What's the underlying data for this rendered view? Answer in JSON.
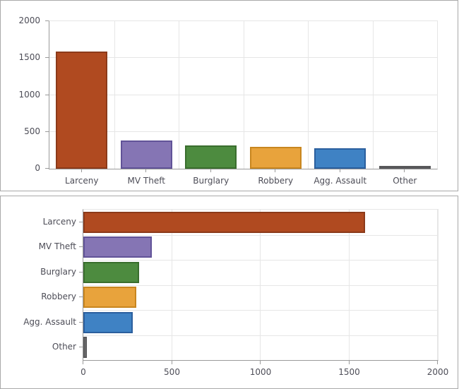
{
  "style": {
    "axis_color": "#9a9a9a",
    "grid_color": "#e6e6e6",
    "text_color": "#4d4d57",
    "panel_border": "#a9a9a9",
    "background": "#ffffff"
  },
  "chart_data": [
    {
      "type": "bar",
      "orientation": "vertical",
      "title": "",
      "xlabel": "",
      "ylabel": "",
      "categories": [
        "Larceny",
        "MV Theft",
        "Burglary",
        "Robbery",
        "Agg. Assault",
        "Other"
      ],
      "values": [
        1590,
        385,
        315,
        300,
        280,
        20
      ],
      "value_axis": {
        "min": 0,
        "max": 2000,
        "ticks": [
          0,
          500,
          1000,
          1500,
          2000
        ]
      },
      "tick_labels": [
        "0",
        "500",
        "1000",
        "1500",
        "2000"
      ],
      "bar_fills": [
        "#b04a20",
        "#8575b4",
        "#4d8b3f",
        "#e8a33c",
        "#3f82c4",
        "#7a7a7a"
      ],
      "bar_borders": [
        "#8c3a1a",
        "#615398",
        "#3a6e2e",
        "#c8861f",
        "#2b5f9e",
        "#58585a"
      ],
      "grid": true,
      "legend": "none"
    },
    {
      "type": "bar",
      "orientation": "horizontal",
      "title": "",
      "xlabel": "",
      "ylabel": "",
      "categories": [
        "Larceny",
        "MV Theft",
        "Burglary",
        "Robbery",
        "Agg. Assault",
        "Other"
      ],
      "values": [
        1590,
        385,
        315,
        300,
        280,
        20
      ],
      "value_axis": {
        "min": 0,
        "max": 2000,
        "ticks": [
          0,
          500,
          1000,
          1500,
          2000
        ]
      },
      "tick_labels": [
        "0",
        "500",
        "1000",
        "1500",
        "2000"
      ],
      "bar_fills": [
        "#b04a20",
        "#8575b4",
        "#4d8b3f",
        "#e8a33c",
        "#3f82c4",
        "#7a7a7a"
      ],
      "bar_borders": [
        "#8c3a1a",
        "#615398",
        "#3a6e2e",
        "#c8861f",
        "#2b5f9e",
        "#58585a"
      ],
      "grid": true,
      "legend": "none"
    }
  ]
}
